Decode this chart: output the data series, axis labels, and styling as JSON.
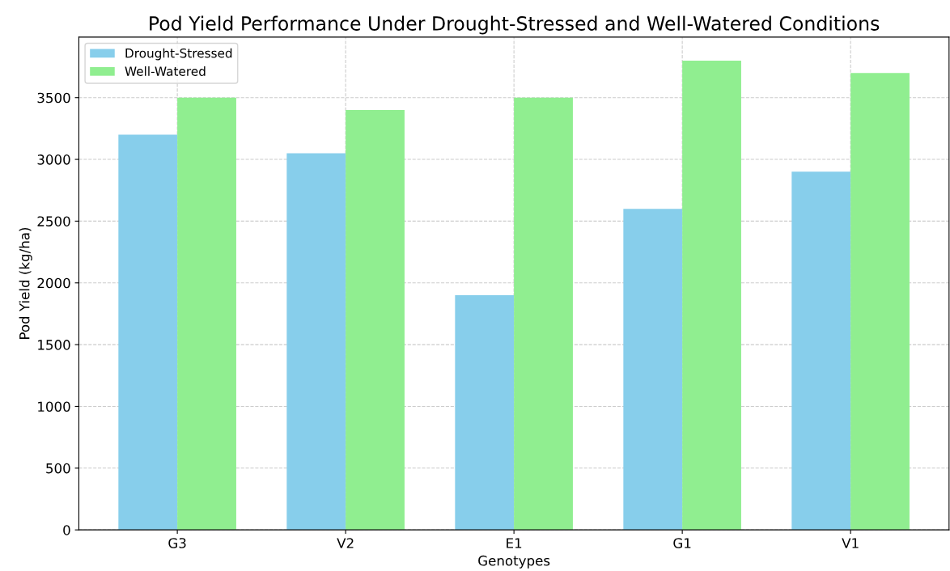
{
  "chart_data": {
    "type": "bar",
    "title": "Pod Yield Performance Under Drought-Stressed and Well-Watered Conditions",
    "xlabel": "Genotypes",
    "ylabel": "Pod Yield (kg/ha)",
    "categories": [
      "G3",
      "V2",
      "E1",
      "G1",
      "V1"
    ],
    "series": [
      {
        "name": "Drought-Stressed",
        "color": "#87ceeb",
        "values": [
          3200,
          3050,
          1900,
          2600,
          2900
        ]
      },
      {
        "name": "Well-Watered",
        "color": "#90ee90",
        "values": [
          3500,
          3400,
          3500,
          3800,
          3700
        ]
      }
    ],
    "ylim": [
      0,
      3990
    ],
    "yticks": [
      0,
      500,
      1000,
      1500,
      2000,
      2500,
      3000,
      3500
    ],
    "grid": true,
    "legend": "top left"
  }
}
